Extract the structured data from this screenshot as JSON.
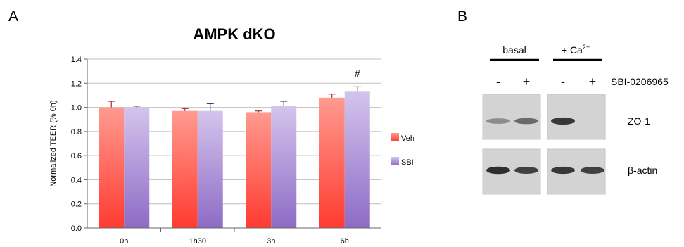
{
  "panel_a": {
    "letter": "A"
  },
  "panel_b": {
    "letter": "B",
    "group_labels": {
      "basal": "basal",
      "calcium_prefix": "+ Ca",
      "calcium_superscript": "2+"
    },
    "treatment_label": "SBI-0206965",
    "lane_signs": [
      "-",
      "+",
      "-",
      "+"
    ],
    "blot_rows": [
      {
        "label": "ZO-1",
        "band_intensity": [
          0.35,
          0.55,
          0.85,
          0.0
        ]
      },
      {
        "label": "β-actin",
        "band_intensity": [
          0.9,
          0.8,
          0.85,
          0.8
        ]
      }
    ]
  },
  "chart_data": {
    "type": "bar",
    "title": "AMPK dKO",
    "xlabel": "",
    "ylabel": "Normalized TEER (% 0h)",
    "categories": [
      "0h",
      "1h30",
      "3h",
      "6h"
    ],
    "ylim": [
      0,
      1.4
    ],
    "yticks": [
      "0.0",
      "0.2",
      "0.4",
      "0.6",
      "0.8",
      "1.0",
      "1.2",
      "1.4"
    ],
    "grid": true,
    "legend": "right",
    "series": [
      {
        "name": "Veh",
        "values": [
          1.0,
          0.97,
          0.96,
          1.08
        ],
        "errors": [
          0.05,
          0.02,
          0.01,
          0.03
        ],
        "color_top": "#ff9a90",
        "color_bottom": "#ff3b30",
        "cap_color": "#a03030"
      },
      {
        "name": "SBI",
        "values": [
          1.0,
          0.97,
          1.01,
          1.13
        ],
        "errors": [
          0.01,
          0.06,
          0.04,
          0.04
        ],
        "color_top": "#d4c4ec",
        "color_bottom": "#8d6bc6",
        "cap_color": "#4a3a70"
      }
    ],
    "annotations": [
      {
        "category": "6h",
        "text": "#"
      }
    ]
  }
}
